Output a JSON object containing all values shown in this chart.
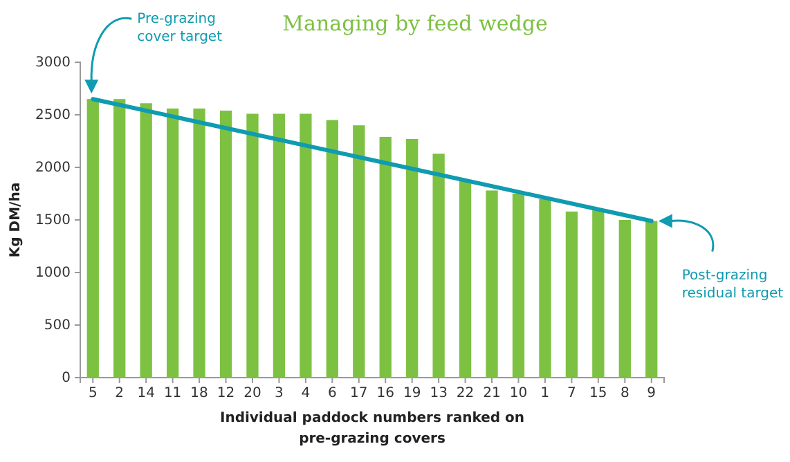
{
  "chart_data": {
    "type": "bar",
    "title": "Managing by feed wedge",
    "xlabel": "Individual paddock numbers ranked on pre-grazing covers",
    "ylabel": "Kg DM/ha",
    "categories": [
      "5",
      "2",
      "14",
      "11",
      "18",
      "12",
      "20",
      "3",
      "4",
      "6",
      "17",
      "16",
      "19",
      "13",
      "22",
      "21",
      "10",
      "1",
      "7",
      "15",
      "8",
      "9"
    ],
    "series": [
      {
        "color": "#7dc142",
        "values": [
          2650,
          2650,
          2610,
          2560,
          2560,
          2540,
          2510,
          2510,
          2510,
          2450,
          2400,
          2290,
          2270,
          2130,
          1870,
          1780,
          1750,
          1700,
          1580,
          1600,
          1500,
          1490
        ]
      },
      {
        "type": "line",
        "color": "#0f9bb0",
        "x": [
          "5",
          "9"
        ],
        "values": [
          2650,
          1490
        ]
      }
    ],
    "ylim": [
      0,
      3000
    ],
    "yticks": [
      0,
      500,
      1000,
      1500,
      2000,
      2500,
      3000
    ],
    "grid": false,
    "annotations": [
      "Pre-grazing cover target",
      "Post-grazing residual target"
    ]
  }
}
